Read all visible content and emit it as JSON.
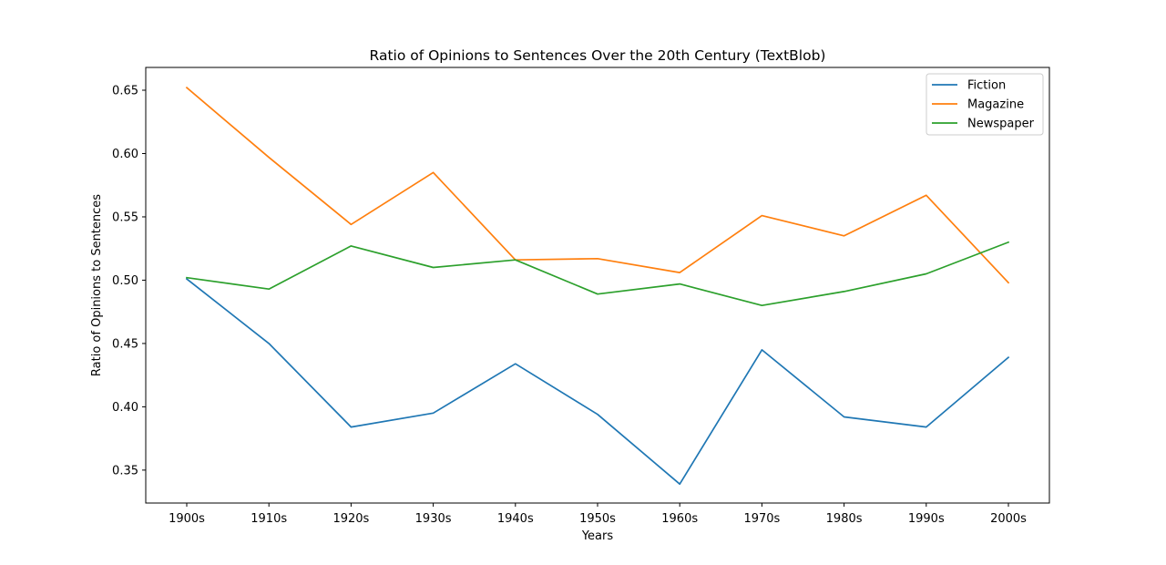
{
  "chart_data": {
    "type": "line",
    "title": "Ratio of Opinions to Sentences Over the 20th Century (TextBlob)",
    "xlabel": "Years",
    "ylabel": "Ratio of Opinions to Sentences",
    "categories": [
      "1900s",
      "1910s",
      "1920s",
      "1930s",
      "1940s",
      "1950s",
      "1960s",
      "1970s",
      "1980s",
      "1990s",
      "2000s"
    ],
    "ylim": [
      0.324,
      0.668
    ],
    "yticks": [
      0.35,
      0.4,
      0.45,
      0.5,
      0.55,
      0.6,
      0.65
    ],
    "ytick_labels": [
      "0.35",
      "0.40",
      "0.45",
      "0.50",
      "0.55",
      "0.60",
      "0.65"
    ],
    "grid": false,
    "legend_position": "top-right",
    "series": [
      {
        "name": "Fiction",
        "color": "#1f77b4",
        "values": [
          0.501,
          0.45,
          0.384,
          0.395,
          0.434,
          0.394,
          0.339,
          0.445,
          0.392,
          0.384,
          0.439
        ]
      },
      {
        "name": "Magazine",
        "color": "#ff7f0e",
        "values": [
          0.652,
          0.597,
          0.544,
          0.585,
          0.516,
          0.517,
          0.506,
          0.551,
          0.535,
          0.567,
          0.498
        ]
      },
      {
        "name": "Newspaper",
        "color": "#2ca02c",
        "values": [
          0.502,
          0.493,
          0.527,
          0.51,
          0.516,
          0.489,
          0.497,
          0.48,
          0.491,
          0.505,
          0.53
        ]
      }
    ]
  }
}
